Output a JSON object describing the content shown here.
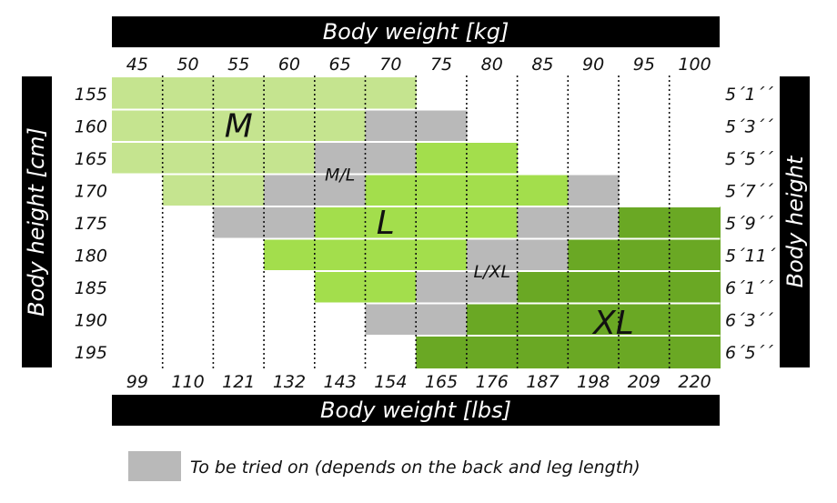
{
  "chart_data": {
    "type": "heatmap",
    "x_top_label": "Body weight [kg]",
    "x_bottom_label": "Body weight [lbs]",
    "y_left_label": "Body height [cm]",
    "y_right_label": "Body height",
    "weights_kg": [
      "45",
      "50",
      "55",
      "60",
      "65",
      "70",
      "75",
      "80",
      "85",
      "90",
      "95",
      "100"
    ],
    "weights_lbs": [
      "99",
      "110",
      "121",
      "132",
      "143",
      "154",
      "165",
      "176",
      "187",
      "198",
      "209",
      "220"
    ],
    "heights_cm": [
      "155",
      "160",
      "165",
      "170",
      "175",
      "180",
      "185",
      "190",
      "195"
    ],
    "heights_ft": [
      "5´1´´",
      "5´3´´",
      "5´5´´",
      "5´7´´",
      "5´9´´",
      "5´11´´",
      "6´1´´",
      "6´3´´",
      "6´5´´"
    ],
    "colors": {
      "M": "#c5e48f",
      "L": "#a3de4c",
      "XL": "#6aa824",
      "tryon": "#b9b9b9"
    },
    "grid": [
      [
        "M",
        "M",
        "M",
        "M",
        "M",
        "M",
        "",
        "",
        "",
        "",
        "",
        ""
      ],
      [
        "M",
        "M",
        "M",
        "M",
        "M",
        "tryon",
        "tryon",
        "",
        "",
        "",
        "",
        ""
      ],
      [
        "M",
        "M",
        "M",
        "M",
        "tryon",
        "tryon",
        "L",
        "L",
        "",
        "",
        "",
        ""
      ],
      [
        "",
        "M",
        "M",
        "tryon",
        "tryon",
        "L",
        "L",
        "L",
        "L",
        "tryon",
        "",
        ""
      ],
      [
        "",
        "",
        "tryon",
        "tryon",
        "L",
        "L",
        "L",
        "L",
        "tryon",
        "tryon",
        "XL",
        "XL"
      ],
      [
        "",
        "",
        "",
        "L",
        "L",
        "L",
        "L",
        "tryon",
        "tryon",
        "XL",
        "XL",
        "XL"
      ],
      [
        "",
        "",
        "",
        "",
        "L",
        "L",
        "tryon",
        "tryon",
        "XL",
        "XL",
        "XL",
        "XL"
      ],
      [
        "",
        "",
        "",
        "",
        "",
        "tryon",
        "tryon",
        "XL",
        "XL",
        "XL",
        "XL",
        "XL"
      ],
      [
        "",
        "",
        "",
        "",
        "",
        "",
        "XL",
        "XL",
        "XL",
        "XL",
        "XL",
        "XL"
      ]
    ],
    "size_labels": [
      {
        "text": "M",
        "row": 1.5,
        "col": 2.5,
        "size": "big"
      },
      {
        "text": "M/L",
        "row": 3.0,
        "col": 4.5,
        "size": "small"
      },
      {
        "text": "L",
        "row": 4.5,
        "col": 5.4,
        "size": "big"
      },
      {
        "text": "L/XL",
        "row": 6.0,
        "col": 7.5,
        "size": "small"
      },
      {
        "text": "XL",
        "row": 7.6,
        "col": 9.9,
        "size": "big"
      }
    ],
    "legend": {
      "swatch": "tryon",
      "text": "To be tried on (depends on the back and leg length)"
    }
  }
}
